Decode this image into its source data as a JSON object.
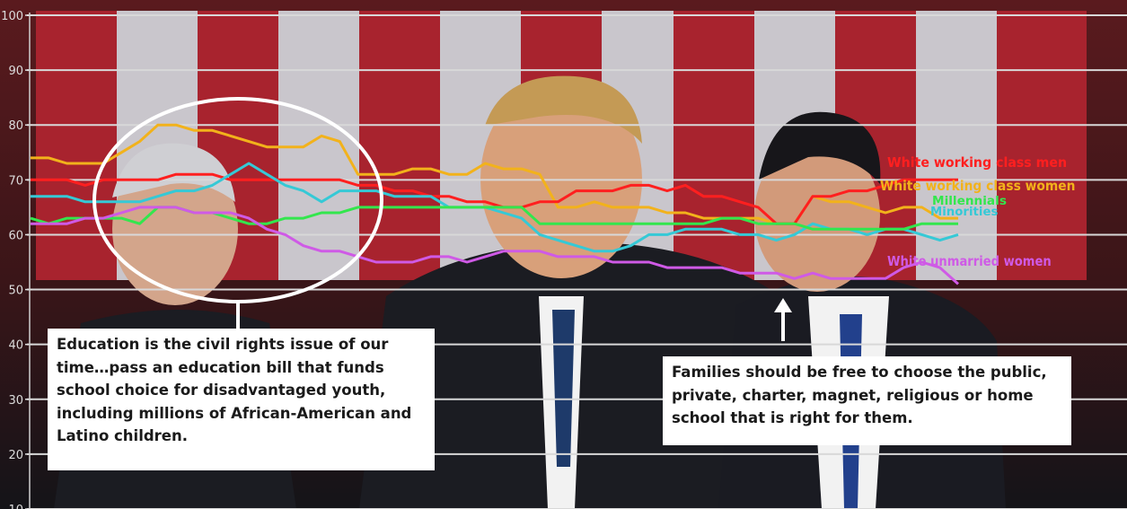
{
  "colors": {
    "white_working_class_men": "#ff1f1f",
    "white_working_class_women": "#f2b21b",
    "millennials": "#33e64d",
    "minorities": "#35c9d6",
    "white_unmarried_women": "#cf5ae6",
    "ellipse": "#ffffff",
    "gridline": "#d8d8d8"
  },
  "callouts": {
    "left": "Education is the civil rights issue of our time…pass an education bill that funds school choice for disadvantaged youth, including millions of African-American and Latino children.",
    "right": "Families should be free to choose the public, private, charter, magnet, religious or home school that is right for them."
  },
  "chart_data": {
    "type": "line",
    "title": "",
    "xlabel": "",
    "ylabel": "",
    "ylim": [
      10,
      100
    ],
    "yticks": [
      10,
      20,
      30,
      40,
      50,
      60,
      70,
      80,
      90,
      100
    ],
    "grid": true,
    "legend": "direct labels at line ends (right)",
    "background": "video still of the State of the Union address",
    "x": [
      0,
      1,
      2,
      3,
      4,
      5,
      6,
      7,
      8,
      9,
      10,
      11,
      12,
      13,
      14,
      15,
      16,
      17,
      18,
      19,
      20,
      21,
      22,
      23,
      24,
      25,
      26,
      27,
      28,
      29,
      30,
      31,
      32,
      33,
      34,
      35,
      36,
      37,
      38,
      39,
      40,
      41,
      42,
      43,
      44,
      45,
      46,
      47,
      48,
      49,
      50,
      51
    ],
    "series": [
      {
        "name": "White working class men",
        "color_key": "white_working_class_men",
        "values": [
          70,
          70,
          70,
          69,
          70,
          70,
          70,
          70,
          71,
          71,
          71,
          70,
          70,
          70,
          70,
          70,
          70,
          70,
          69,
          69,
          68,
          68,
          67,
          67,
          66,
          66,
          65,
          65,
          66,
          66,
          68,
          68,
          68,
          69,
          69,
          68,
          69,
          67,
          67,
          66,
          65,
          62,
          62,
          67,
          67,
          68,
          68,
          69,
          70,
          70,
          70,
          70
        ]
      },
      {
        "name": "White working class women",
        "color_key": "white_working_class_women",
        "values": [
          74,
          74,
          73,
          73,
          73,
          75,
          77,
          80,
          80,
          79,
          79,
          78,
          77,
          76,
          76,
          76,
          78,
          77,
          71,
          71,
          71,
          72,
          72,
          71,
          71,
          73,
          72,
          72,
          71,
          65,
          65,
          66,
          65,
          65,
          65,
          64,
          64,
          63,
          63,
          63,
          63,
          62,
          62,
          67,
          66,
          66,
          65,
          64,
          65,
          65,
          63,
          63
        ]
      },
      {
        "name": "Millennials",
        "color_key": "millennials",
        "values": [
          63,
          62,
          63,
          63,
          63,
          63,
          62,
          65,
          65,
          64,
          64,
          63,
          62,
          62,
          63,
          63,
          64,
          64,
          65,
          65,
          65,
          65,
          65,
          65,
          65,
          65,
          65,
          65,
          62,
          62,
          62,
          62,
          62,
          62,
          62,
          62,
          62,
          62,
          63,
          63,
          62,
          62,
          62,
          61,
          61,
          61,
          61,
          61,
          61,
          62,
          62,
          62
        ]
      },
      {
        "name": "Minorities",
        "color_key": "minorities",
        "values": [
          67,
          67,
          67,
          66,
          66,
          66,
          66,
          67,
          68,
          68,
          69,
          71,
          73,
          71,
          69,
          68,
          66,
          68,
          68,
          68,
          67,
          67,
          67,
          65,
          65,
          65,
          64,
          63,
          60,
          59,
          58,
          57,
          57,
          58,
          60,
          60,
          61,
          61,
          61,
          60,
          60,
          59,
          60,
          62,
          61,
          61,
          60,
          61,
          61,
          60,
          59,
          60
        ]
      },
      {
        "name": "White unmarried women",
        "color_key": "white_unmarried_women",
        "values": [
          62,
          62,
          62,
          63,
          63,
          64,
          65,
          65,
          65,
          64,
          64,
          64,
          63,
          61,
          60,
          58,
          57,
          57,
          56,
          55,
          55,
          55,
          56,
          56,
          55,
          56,
          57,
          57,
          57,
          56,
          56,
          56,
          55,
          55,
          55,
          54,
          54,
          54,
          54,
          53,
          53,
          53,
          52,
          53,
          52,
          52,
          52,
          52,
          54,
          55,
          54,
          51
        ]
      }
    ],
    "series_labels": [
      {
        "text": "White working class men",
        "color_key": "white_working_class_men"
      },
      {
        "text": "White working class women",
        "color_key": "white_working_class_women"
      },
      {
        "text": "Millennials",
        "color_key": "millennials"
      },
      {
        "text": "Minorities",
        "color_key": "minorities"
      },
      {
        "text": "White unmarried women",
        "color_key": "white_unmarried_women"
      }
    ]
  }
}
